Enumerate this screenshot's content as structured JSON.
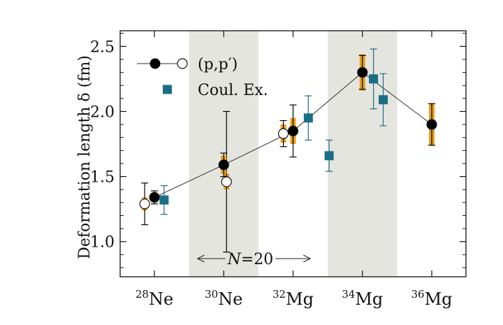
{
  "chart_data": {
    "type": "scatter",
    "title": "",
    "xlabel": "",
    "ylabel": "Deformation length δ (fm)",
    "ylim": [
      0.73,
      2.62
    ],
    "yticks": [
      "1.0",
      "1.5",
      "2.0",
      "2.5"
    ],
    "yticks_values": [
      1.0,
      1.5,
      2.0,
      2.5
    ],
    "categories": [
      {
        "mass": "28",
        "element": "Ne"
      },
      {
        "mass": "30",
        "element": "Ne"
      },
      {
        "mass": "32",
        "element": "Mg"
      },
      {
        "mass": "34",
        "element": "Mg"
      },
      {
        "mass": "36",
        "element": "Mg"
      }
    ],
    "shaded_categories": [
      1,
      3
    ],
    "legend": {
      "position": "top-left",
      "entries": [
        {
          "label": "(p,p′)"
        },
        {
          "label": "Coul. Ex."
        }
      ]
    },
    "annotation": {
      "text_prefix": "N",
      "text_suffix": "=20",
      "arrow": "double",
      "span_category": 1.8
    },
    "series": [
      {
        "marker": "filled-circle",
        "connected": true,
        "color": "#000000",
        "points": [
          {
            "cat": 0,
            "offset": 0.0,
            "y": 1.34,
            "err": 0.05,
            "sys_err": 0.04
          },
          {
            "cat": 1,
            "offset": 0.0,
            "y": 1.59,
            "err": 0.09,
            "sys_err": 0.07
          },
          {
            "cat": 2,
            "offset": 0.0,
            "y": 1.85,
            "err": 0.2,
            "sys_err": 0.1
          },
          {
            "cat": 3,
            "offset": 0.0,
            "y": 2.3,
            "err": 0.13,
            "sys_err": 0.14
          },
          {
            "cat": 4,
            "offset": 0.0,
            "y": 1.9,
            "err": 0.16,
            "sys_err": 0.16
          }
        ]
      },
      {
        "marker": "open-circle",
        "connected": false,
        "color": "#000000",
        "points": [
          {
            "cat": 0,
            "offset": -0.14,
            "y": 1.29,
            "err": 0.16,
            "sys_err": 0.05
          },
          {
            "cat": 1,
            "offset": 0.04,
            "y": 1.46,
            "err": 0.54,
            "sys_err": 0.06
          },
          {
            "cat": 2,
            "offset": -0.14,
            "y": 1.83,
            "err": 0.1,
            "sys_err": 0.07
          }
        ]
      },
      {
        "marker": "filled-square",
        "connected": false,
        "color": "#1a6e85",
        "points": [
          {
            "cat": 0,
            "offset": 0.14,
            "y": 1.32,
            "err": 0.11
          },
          {
            "cat": 2,
            "offset": 0.22,
            "y": 1.95,
            "err": 0.17
          },
          {
            "cat": 2,
            "offset": 0.52,
            "y": 1.66,
            "err": 0.12
          },
          {
            "cat": 3,
            "offset": 0.16,
            "y": 2.25,
            "err": 0.23
          },
          {
            "cat": 3,
            "offset": 0.3,
            "y": 2.09,
            "err": 0.2
          }
        ]
      }
    ]
  }
}
